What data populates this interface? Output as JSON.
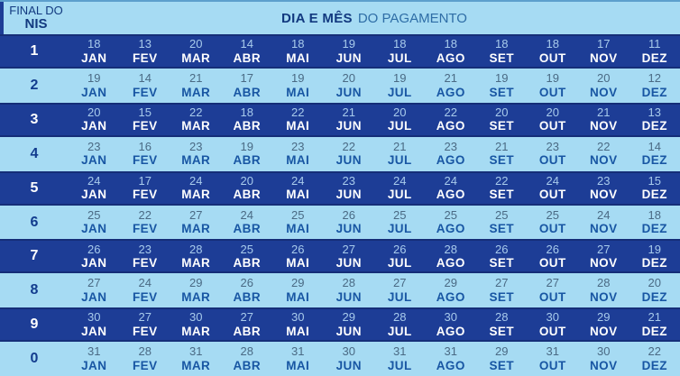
{
  "header": {
    "nis_label_line1": "FINAL DO",
    "nis_label_line2": "NIS",
    "title_bold": "DIA E MÊS",
    "title_rest": "DO PAGAMENTO"
  },
  "colors": {
    "dark_row_bg": "#1d3d96",
    "dark_row_edge": "#152e78",
    "light_row_bg": "#a6dbf3",
    "header_navy": "#12397f",
    "header_subtitle": "#2e6da6",
    "day_on_dark": "#a8cbec",
    "month_on_dark": "#ffffff",
    "day_on_light": "#4a6a84",
    "month_on_light": "#1856a3",
    "digit_on_light": "#123c8e"
  },
  "chart_data": {
    "type": "table",
    "title": "DIA E MÊS DO PAGAMENTO",
    "row_header": "FINAL DO NIS",
    "columns": [
      "JAN",
      "FEV",
      "MAR",
      "ABR",
      "MAI",
      "JUN",
      "JUL",
      "AGO",
      "SET",
      "OUT",
      "NOV",
      "DEZ"
    ],
    "rows": [
      {
        "nis": "1",
        "days": [
          "18",
          "13",
          "20",
          "14",
          "18",
          "19",
          "18",
          "18",
          "18",
          "18",
          "17",
          "11"
        ]
      },
      {
        "nis": "2",
        "days": [
          "19",
          "14",
          "21",
          "17",
          "19",
          "20",
          "19",
          "21",
          "19",
          "19",
          "20",
          "12"
        ]
      },
      {
        "nis": "3",
        "days": [
          "20",
          "15",
          "22",
          "18",
          "22",
          "21",
          "20",
          "22",
          "20",
          "20",
          "21",
          "13"
        ]
      },
      {
        "nis": "4",
        "days": [
          "23",
          "16",
          "23",
          "19",
          "23",
          "22",
          "21",
          "23",
          "21",
          "23",
          "22",
          "14"
        ]
      },
      {
        "nis": "5",
        "days": [
          "24",
          "17",
          "24",
          "20",
          "24",
          "23",
          "24",
          "24",
          "22",
          "24",
          "23",
          "15"
        ]
      },
      {
        "nis": "6",
        "days": [
          "25",
          "22",
          "27",
          "24",
          "25",
          "26",
          "25",
          "25",
          "25",
          "25",
          "24",
          "18"
        ]
      },
      {
        "nis": "7",
        "days": [
          "26",
          "23",
          "28",
          "25",
          "26",
          "27",
          "26",
          "28",
          "26",
          "26",
          "27",
          "19"
        ]
      },
      {
        "nis": "8",
        "days": [
          "27",
          "24",
          "29",
          "26",
          "29",
          "28",
          "27",
          "29",
          "27",
          "27",
          "28",
          "20"
        ]
      },
      {
        "nis": "9",
        "days": [
          "30",
          "27",
          "30",
          "27",
          "30",
          "29",
          "28",
          "30",
          "28",
          "30",
          "29",
          "21"
        ]
      },
      {
        "nis": "0",
        "days": [
          "31",
          "28",
          "31",
          "28",
          "31",
          "30",
          "31",
          "31",
          "29",
          "31",
          "30",
          "22"
        ]
      }
    ]
  }
}
